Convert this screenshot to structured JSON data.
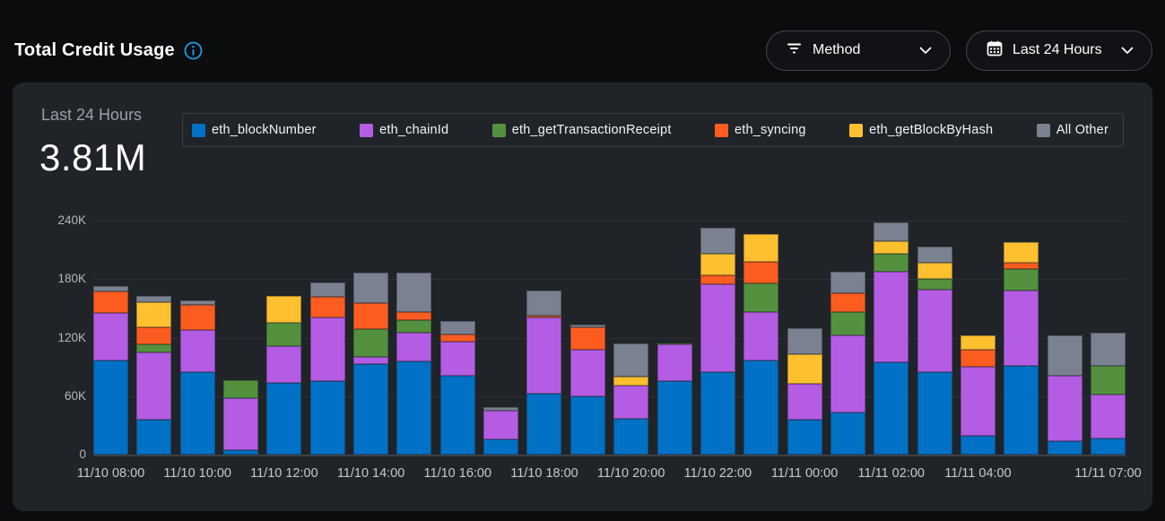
{
  "header": {
    "title": "Total Credit Usage",
    "info_icon": "info-circle"
  },
  "filters": {
    "method": {
      "label": "Method",
      "icon": "filter-icon"
    },
    "time_range": {
      "label": "Last 24 Hours",
      "icon": "calendar-icon"
    }
  },
  "summary": {
    "period_label": "Last 24 Hours",
    "total": "3.81M"
  },
  "colors": {
    "info_accent": "#1e9de8",
    "panel_bg": "#202428",
    "page_bg": "#0b0c0e"
  },
  "chart_data": {
    "type": "bar",
    "stacked": true,
    "title": "Total Credit Usage",
    "unit": "K credits",
    "ylim_k": [
      0,
      240
    ],
    "yticks": [
      "240K",
      "180K",
      "120K",
      "60K",
      "0"
    ],
    "grid": true,
    "legend_position": "top",
    "categories": [
      "11/10 08:00",
      "11/10 09:00",
      "11/10 10:00",
      "11/10 11:00",
      "11/10 12:00",
      "11/10 13:00",
      "11/10 14:00",
      "11/10 15:00",
      "11/10 16:00",
      "11/10 17:00",
      "11/10 18:00",
      "11/10 19:00",
      "11/10 20:00",
      "11/10 21:00",
      "11/10 22:00",
      "11/10 23:00",
      "11/11 00:00",
      "11/11 01:00",
      "11/11 02:00",
      "11/11 03:00",
      "11/11 04:00",
      "11/11 05:00",
      "11/11 06:00",
      "11/11 07:00"
    ],
    "x_tick_labels": [
      {
        "bar": 0,
        "label": "11/10 08:00"
      },
      {
        "bar": 2,
        "label": "11/10 10:00"
      },
      {
        "bar": 4,
        "label": "11/10 12:00"
      },
      {
        "bar": 6,
        "label": "11/10 14:00"
      },
      {
        "bar": 8,
        "label": "11/10 16:00"
      },
      {
        "bar": 10,
        "label": "11/10 18:00"
      },
      {
        "bar": 12,
        "label": "11/10 20:00"
      },
      {
        "bar": 14,
        "label": "11/10 22:00"
      },
      {
        "bar": 16,
        "label": "11/11 00:00"
      },
      {
        "bar": 18,
        "label": "11/11 02:00"
      },
      {
        "bar": 20,
        "label": "11/11 04:00"
      },
      {
        "bar": 23,
        "label": "11/11 07:00"
      }
    ],
    "series": [
      {
        "name": "eth_blockNumber",
        "color": "#0071c5",
        "values_k": [
          97,
          36,
          85,
          5,
          74,
          75,
          93,
          96,
          81,
          16,
          63,
          60,
          37,
          75,
          85,
          97,
          36,
          43,
          95,
          85,
          19,
          91,
          14,
          17
        ]
      },
      {
        "name": "eth_chainId",
        "color": "#b45ce4",
        "values_k": [
          48,
          69,
          43,
          53,
          37,
          66,
          7,
          29,
          35,
          29,
          78,
          48,
          34,
          38,
          90,
          49,
          37,
          79,
          93,
          84,
          71,
          77,
          67,
          45
        ]
      },
      {
        "name": "eth_getTransactionReceipt",
        "color": "#53913e",
        "values_k": [
          0,
          8,
          0,
          18,
          24,
          0,
          29,
          13,
          0,
          0,
          0,
          0,
          0,
          1,
          0,
          30,
          0,
          24,
          18,
          11,
          0,
          22,
          0,
          29
        ]
      },
      {
        "name": "eth_syncing",
        "color": "#fd5c21",
        "values_k": [
          22,
          18,
          26,
          0,
          0,
          21,
          26,
          8,
          7,
          0,
          2,
          23,
          0,
          0,
          9,
          22,
          0,
          20,
          0,
          0,
          18,
          7,
          0,
          0
        ]
      },
      {
        "name": "eth_getBlockByHash",
        "color": "#fec02f",
        "values_k": [
          0,
          25,
          0,
          0,
          28,
          0,
          0,
          0,
          0,
          0,
          0,
          0,
          9,
          0,
          22,
          28,
          30,
          0,
          13,
          17,
          14,
          21,
          0,
          0
        ]
      },
      {
        "name": "All Other",
        "color": "#7a8190",
        "values_k": [
          6,
          7,
          4,
          0,
          0,
          15,
          32,
          41,
          14,
          4,
          25,
          2,
          34,
          0,
          27,
          0,
          27,
          22,
          19,
          16,
          0,
          0,
          41,
          34
        ]
      }
    ]
  }
}
